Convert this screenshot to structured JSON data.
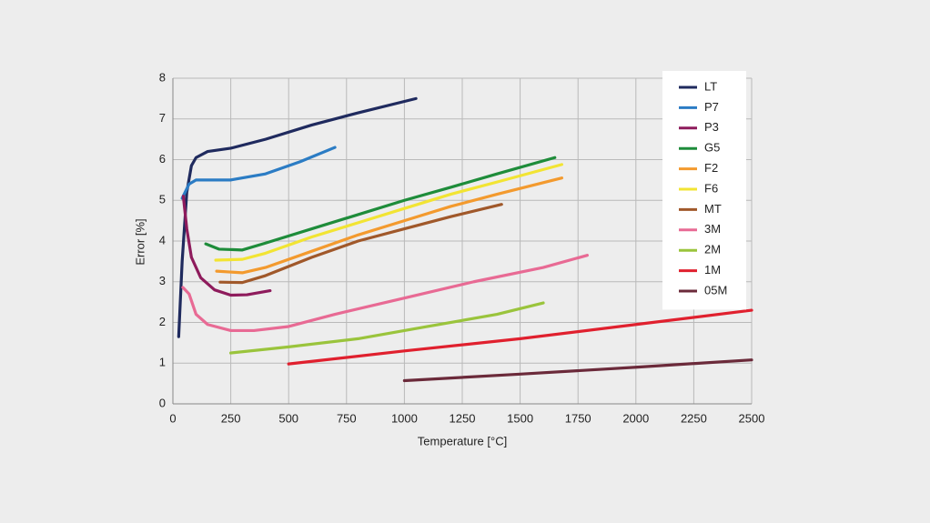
{
  "chart_data": {
    "type": "line",
    "x_label": "Temperature [°C]",
    "y_label": "Error [%]",
    "xlim": [
      0,
      2500
    ],
    "ylim": [
      0,
      8
    ],
    "xticks": [
      0,
      250,
      500,
      750,
      1000,
      1250,
      1500,
      1750,
      2000,
      2250,
      2500
    ],
    "yticks": [
      0,
      1,
      2,
      3,
      4,
      5,
      6,
      7,
      8
    ],
    "grid": true,
    "legend": "top-right",
    "series": [
      {
        "name": "LT",
        "color": "#1f2a5e",
        "x": [
          25,
          40,
          60,
          80,
          100,
          150,
          250,
          400,
          600,
          800,
          1050
        ],
        "values": [
          1.65,
          3.5,
          5.2,
          5.85,
          6.05,
          6.2,
          6.28,
          6.5,
          6.85,
          7.15,
          7.5
        ]
      },
      {
        "name": "P7",
        "color": "#2b7cc4",
        "x": [
          40,
          70,
          100,
          150,
          250,
          400,
          550,
          700
        ],
        "values": [
          5.05,
          5.4,
          5.5,
          5.5,
          5.5,
          5.65,
          5.95,
          6.3
        ]
      },
      {
        "name": "P3",
        "color": "#8e1b5c",
        "x": [
          45,
          60,
          80,
          120,
          180,
          250,
          320,
          420
        ],
        "values": [
          5.1,
          4.3,
          3.6,
          3.1,
          2.8,
          2.67,
          2.68,
          2.78
        ]
      },
      {
        "name": "G5",
        "color": "#1e8c3a",
        "x": [
          142,
          200,
          300,
          400,
          600,
          800,
          1000,
          1200,
          1400,
          1650
        ],
        "values": [
          3.93,
          3.8,
          3.78,
          3.95,
          4.3,
          4.65,
          5.0,
          5.32,
          5.65,
          6.05
        ]
      },
      {
        "name": "F2",
        "color": "#f39a2e",
        "x": [
          189,
          300,
          400,
          600,
          800,
          1000,
          1200,
          1400,
          1680
        ],
        "values": [
          3.26,
          3.22,
          3.35,
          3.75,
          4.15,
          4.5,
          4.85,
          5.15,
          5.55
        ]
      },
      {
        "name": "F6",
        "color": "#f2e433",
        "x": [
          185,
          300,
          400,
          600,
          800,
          1000,
          1200,
          1400,
          1680
        ],
        "values": [
          3.53,
          3.55,
          3.7,
          4.1,
          4.45,
          4.8,
          5.15,
          5.45,
          5.88
        ]
      },
      {
        "name": "MT",
        "color": "#a0582a",
        "x": [
          204,
          300,
          400,
          600,
          800,
          1000,
          1200,
          1420
        ],
        "values": [
          2.99,
          2.98,
          3.15,
          3.6,
          4.0,
          4.3,
          4.6,
          4.9
        ]
      },
      {
        "name": "3M",
        "color": "#e86a94",
        "x": [
          43,
          70,
          100,
          150,
          250,
          350,
          500,
          700,
          1000,
          1300,
          1600,
          1790
        ],
        "values": [
          2.86,
          2.7,
          2.2,
          1.95,
          1.8,
          1.8,
          1.9,
          2.2,
          2.6,
          3.0,
          3.35,
          3.65
        ]
      },
      {
        "name": "2M",
        "color": "#9ac43c",
        "x": [
          250,
          500,
          800,
          1100,
          1400,
          1600
        ],
        "values": [
          1.25,
          1.4,
          1.6,
          1.9,
          2.2,
          2.48
        ]
      },
      {
        "name": "1M",
        "color": "#e0202e",
        "x": [
          500,
          1000,
          1500,
          2000,
          2500
        ],
        "values": [
          0.98,
          1.3,
          1.6,
          1.95,
          2.3
        ]
      },
      {
        "name": "05M",
        "color": "#6b2a3a",
        "x": [
          1000,
          1500,
          2000,
          2500
        ],
        "values": [
          0.57,
          0.73,
          0.9,
          1.08
        ]
      }
    ]
  }
}
